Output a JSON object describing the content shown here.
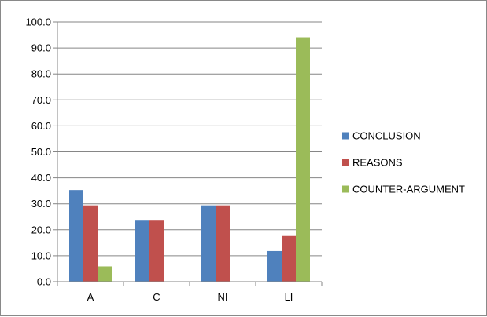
{
  "chart_data": {
    "type": "bar",
    "title": "",
    "xlabel": "",
    "ylabel": "",
    "categories": [
      "A",
      "C",
      "NI",
      "LI"
    ],
    "series": [
      {
        "name": "CONCLUSION",
        "color": "#4f81bd",
        "values": [
          35.3,
          23.5,
          29.4,
          11.8
        ]
      },
      {
        "name": "REASONS",
        "color": "#c0504d",
        "values": [
          29.4,
          23.5,
          29.4,
          17.6
        ]
      },
      {
        "name": "COUNTER-ARGUMENT",
        "color": "#9bbb59",
        "values": [
          5.9,
          0.0,
          0.0,
          94.1
        ]
      }
    ],
    "ylim": [
      0,
      100
    ],
    "yticks": [
      "0.0",
      "10.0",
      "20.0",
      "30.0",
      "40.0",
      "50.0",
      "60.0",
      "70.0",
      "80.0",
      "90.0",
      "100.0"
    ],
    "grid": true,
    "legend_position": "right"
  }
}
